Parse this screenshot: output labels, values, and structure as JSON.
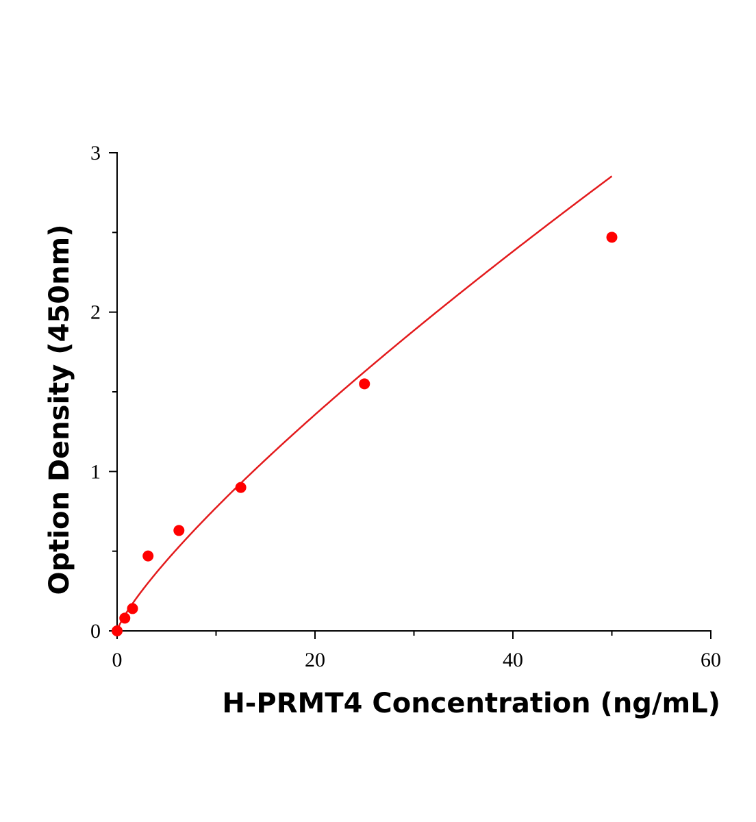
{
  "chart_data": {
    "type": "scatter",
    "xlabel": "H-PRMT4 Concentration (ng/mL)",
    "ylabel": "Option Density (450nm)",
    "xlim": [
      0,
      60
    ],
    "ylim": [
      0,
      3
    ],
    "x_ticks": [
      "0",
      "20",
      "40",
      "60"
    ],
    "y_ticks": [
      "0",
      "1",
      "2",
      "3"
    ],
    "grid": false,
    "series": [
      {
        "points": [
          {
            "x": 0,
            "y": 0.0
          },
          {
            "x": 0.78,
            "y": 0.08
          },
          {
            "x": 1.56,
            "y": 0.14
          },
          {
            "x": 3.13,
            "y": 0.47
          },
          {
            "x": 6.25,
            "y": 0.63
          },
          {
            "x": 12.5,
            "y": 0.9
          },
          {
            "x": 25,
            "y": 1.55
          },
          {
            "x": 50,
            "y": 2.47
          }
        ],
        "fit_curve": true
      }
    ],
    "colors": {
      "series": "#ff0000",
      "curve": "#e31a1c",
      "axis": "#000000"
    }
  }
}
